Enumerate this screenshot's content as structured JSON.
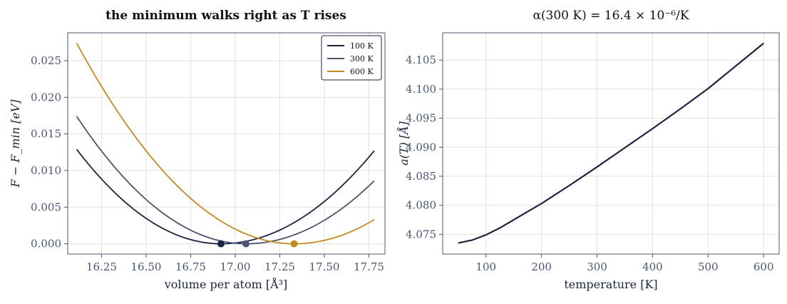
{
  "chart_data": [
    {
      "type": "line",
      "title": "the minimum walks right as T rises",
      "xlabel": "volume per atom  [Å³]",
      "ylabel": "F − F_min  [eV]",
      "xlim": [
        16.06,
        17.84
      ],
      "ylim": [
        -0.0014,
        0.0288
      ],
      "x_ticks": [
        "16.25",
        "16.50",
        "16.75",
        "17.00",
        "17.25",
        "17.50",
        "17.75"
      ],
      "y_ticks": [
        "0.000",
        "0.005",
        "0.010",
        "0.015",
        "0.020",
        "0.025"
      ],
      "grid": true,
      "legend_position": "top-right",
      "series": [
        {
          "name": "100 K",
          "color": "#1b2541",
          "v_min": 16.92,
          "x_start": 16.11,
          "x_end": 17.78,
          "y_start": 0.0129,
          "y_end": 0.0127
        },
        {
          "name": "300 K",
          "color": "#4a5570",
          "v_min": 17.06,
          "x_start": 16.11,
          "x_end": 17.78,
          "y_start": 0.0174,
          "y_end": 0.0086
        },
        {
          "name": "600 K",
          "color": "#c48a22",
          "v_min": 17.33,
          "x_start": 16.11,
          "x_end": 17.78,
          "y_start": 0.0274,
          "y_end": 0.0033
        }
      ],
      "minima": [
        {
          "x": 16.92,
          "y": 0.0,
          "color": "#1b2541"
        },
        {
          "x": 17.06,
          "y": 0.0,
          "color": "#4a5570"
        },
        {
          "x": 17.33,
          "y": 0.0,
          "color": "#c48a22"
        }
      ]
    },
    {
      "type": "line",
      "title": "α(300 K) = 16.4 × 10⁻⁶/K",
      "xlabel": "temperature  [K]",
      "ylabel": "a(T)  [Å]",
      "xlim": [
        22,
        628
      ],
      "ylim": [
        4.0716,
        4.1097
      ],
      "x_ticks": [
        "100",
        "200",
        "300",
        "400",
        "500",
        "600"
      ],
      "y_ticks": [
        "4.075",
        "4.080",
        "4.085",
        "4.090",
        "4.095",
        "4.100",
        "4.105"
      ],
      "grid": true,
      "series": [
        {
          "color": "#1b2541",
          "x": [
            50,
            75,
            100,
            125,
            150,
            175,
            200,
            250,
            300,
            350,
            400,
            450,
            500,
            550,
            600
          ],
          "y": [
            4.0735,
            4.074,
            4.0749,
            4.0761,
            4.0775,
            4.0789,
            4.0803,
            4.0834,
            4.0866,
            4.0899,
            4.0932,
            4.0966,
            4.1001,
            4.104,
            4.1079
          ]
        }
      ]
    }
  ]
}
